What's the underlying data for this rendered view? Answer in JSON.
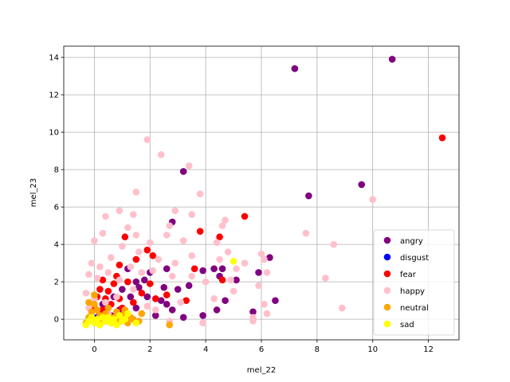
{
  "chart_data": {
    "type": "scatter",
    "title": "",
    "xlabel": "mel_22",
    "ylabel": "mel_23",
    "xlim": [
      -1.1,
      13.1
    ],
    "ylim": [
      -1.1,
      14.6
    ],
    "xticks": [
      0,
      2,
      4,
      6,
      8,
      10,
      12
    ],
    "yticks": [
      0,
      2,
      4,
      6,
      8,
      10,
      12,
      14
    ],
    "grid": true,
    "legend_position": "lower-right",
    "series": [
      {
        "name": "angry",
        "color": "#800080",
        "points": [
          [
            10.7,
            13.9
          ],
          [
            7.2,
            13.4
          ],
          [
            3.2,
            7.9
          ],
          [
            9.6,
            7.2
          ],
          [
            7.7,
            6.6
          ],
          [
            2.8,
            5.2
          ],
          [
            6.3,
            3.3
          ],
          [
            6.5,
            1.0
          ],
          [
            5.9,
            2.5
          ],
          [
            5.1,
            2.1
          ],
          [
            4.6,
            2.7
          ],
          [
            4.3,
            2.7
          ],
          [
            4.5,
            2.3
          ],
          [
            4.7,
            1.0
          ],
          [
            4.4,
            0.5
          ],
          [
            3.9,
            0.2
          ],
          [
            3.9,
            2.6
          ],
          [
            3.4,
            1.8
          ],
          [
            3.0,
            1.6
          ],
          [
            2.6,
            2.7
          ],
          [
            2.5,
            1.7
          ],
          [
            2.6,
            0.8
          ],
          [
            2.8,
            0.5
          ],
          [
            2.4,
            1.0
          ],
          [
            2.0,
            2.5
          ],
          [
            1.8,
            2.1
          ],
          [
            1.6,
            1.7
          ],
          [
            1.5,
            2.0
          ],
          [
            1.5,
            0.6
          ],
          [
            1.2,
            2.7
          ],
          [
            1.0,
            1.6
          ],
          [
            0.9,
            0.5
          ],
          [
            0.7,
            1.2
          ],
          [
            0.6,
            0.2
          ],
          [
            0.3,
            0.8
          ],
          [
            0.2,
            0.3
          ],
          [
            0.1,
            0.0
          ],
          [
            5.7,
            0.4
          ],
          [
            3.2,
            0.1
          ],
          [
            2.2,
            0.2
          ],
          [
            1.9,
            1.2
          ],
          [
            1.3,
            1.2
          ]
        ]
      },
      {
        "name": "disgust",
        "color": "#0000ff",
        "points": [
          [
            0.2,
            -0.2
          ],
          [
            0.4,
            -0.1
          ],
          [
            0.6,
            0.0
          ],
          [
            0.1,
            0.1
          ],
          [
            0.8,
            -0.1
          ],
          [
            1.0,
            0.1
          ]
        ]
      },
      {
        "name": "fear",
        "color": "#ff0000",
        "points": [
          [
            12.5,
            9.7
          ],
          [
            5.4,
            5.5
          ],
          [
            3.8,
            4.7
          ],
          [
            4.5,
            4.4
          ],
          [
            1.1,
            4.4
          ],
          [
            2.1,
            3.4
          ],
          [
            1.5,
            3.2
          ],
          [
            0.9,
            2.9
          ],
          [
            2.0,
            1.9
          ],
          [
            4.6,
            2.1
          ],
          [
            3.6,
            2.7
          ],
          [
            3.3,
            1.0
          ],
          [
            2.6,
            1.3
          ],
          [
            2.2,
            1.1
          ],
          [
            1.7,
            1.4
          ],
          [
            1.4,
            0.9
          ],
          [
            1.2,
            2.0
          ],
          [
            0.8,
            2.3
          ],
          [
            0.7,
            1.9
          ],
          [
            0.5,
            1.5
          ],
          [
            0.4,
            1.1
          ],
          [
            0.3,
            2.1
          ],
          [
            0.2,
            1.6
          ],
          [
            0.1,
            1.2
          ],
          [
            0.6,
            0.8
          ],
          [
            0.9,
            1.1
          ],
          [
            1.0,
            0.6
          ],
          [
            0.0,
            0.6
          ],
          [
            0.3,
            0.5
          ],
          [
            1.9,
            3.7
          ]
        ]
      },
      {
        "name": "happy",
        "color": "#ffc0cb",
        "points": [
          [
            1.9,
            9.6
          ],
          [
            2.4,
            8.8
          ],
          [
            3.4,
            8.2
          ],
          [
            3.8,
            6.7
          ],
          [
            10.0,
            6.4
          ],
          [
            1.5,
            6.8
          ],
          [
            2.9,
            5.8
          ],
          [
            3.5,
            5.6
          ],
          [
            0.9,
            5.8
          ],
          [
            0.4,
            5.5
          ],
          [
            1.4,
            5.6
          ],
          [
            2.7,
            5.0
          ],
          [
            4.6,
            5.0
          ],
          [
            4.7,
            5.3
          ],
          [
            2.6,
            4.5
          ],
          [
            3.2,
            4.2
          ],
          [
            2.0,
            4.1
          ],
          [
            0.0,
            4.2
          ],
          [
            1.2,
            4.9
          ],
          [
            1.5,
            4.5
          ],
          [
            0.3,
            4.6
          ],
          [
            4.4,
            4.1
          ],
          [
            7.6,
            4.6
          ],
          [
            8.6,
            4.0
          ],
          [
            4.8,
            3.6
          ],
          [
            5.4,
            3.0
          ],
          [
            6.0,
            3.5
          ],
          [
            6.1,
            3.2
          ],
          [
            5.1,
            2.7
          ],
          [
            4.5,
            3.2
          ],
          [
            3.5,
            3.4
          ],
          [
            2.9,
            3.0
          ],
          [
            2.3,
            3.2
          ],
          [
            2.1,
            2.6
          ],
          [
            1.6,
            3.6
          ],
          [
            1.0,
            3.9
          ],
          [
            0.6,
            3.3
          ],
          [
            0.2,
            2.8
          ],
          [
            -0.1,
            3.0
          ],
          [
            -0.2,
            2.4
          ],
          [
            0.1,
            2.2
          ],
          [
            0.5,
            2.5
          ],
          [
            0.9,
            2.1
          ],
          [
            1.3,
            2.8
          ],
          [
            1.7,
            2.5
          ],
          [
            2.8,
            2.3
          ],
          [
            3.5,
            2.3
          ],
          [
            4.0,
            2.0
          ],
          [
            4.9,
            2.1
          ],
          [
            5.0,
            1.5
          ],
          [
            5.9,
            1.8
          ],
          [
            6.2,
            2.5
          ],
          [
            8.3,
            2.2
          ],
          [
            8.9,
            0.6
          ],
          [
            6.1,
            0.8
          ],
          [
            5.7,
            0.1
          ],
          [
            3.9,
            -0.2
          ],
          [
            2.7,
            -0.1
          ],
          [
            1.9,
            0.7
          ],
          [
            1.4,
            1.6
          ],
          [
            0.8,
            1.2
          ],
          [
            0.4,
            0.9
          ],
          [
            0.0,
            1.1
          ],
          [
            -0.3,
            1.4
          ],
          [
            -0.2,
            0.6
          ],
          [
            0.5,
            0.3
          ],
          [
            1.1,
            0.4
          ],
          [
            2.2,
            0.5
          ],
          [
            3.1,
            0.9
          ],
          [
            4.3,
            1.1
          ],
          [
            6.2,
            0.3
          ],
          [
            5.7,
            -0.1
          ]
        ]
      },
      {
        "name": "neutral",
        "color": "#ffa500",
        "points": [
          [
            -0.3,
            -0.2
          ],
          [
            -0.2,
            0.1
          ],
          [
            -0.1,
            0.4
          ],
          [
            0.0,
            0.8
          ],
          [
            0.1,
            0.5
          ],
          [
            0.2,
            0.2
          ],
          [
            0.3,
            -0.1
          ],
          [
            0.4,
            0.3
          ],
          [
            0.5,
            0.6
          ],
          [
            0.6,
            -0.2
          ],
          [
            0.7,
            0.1
          ],
          [
            0.8,
            0.4
          ],
          [
            0.9,
            -0.1
          ],
          [
            1.0,
            0.2
          ],
          [
            1.1,
            0.5
          ],
          [
            1.2,
            -0.2
          ],
          [
            1.3,
            0.1
          ],
          [
            1.4,
            0.0
          ],
          [
            1.6,
            -0.1
          ],
          [
            1.7,
            0.3
          ],
          [
            2.7,
            -0.3
          ],
          [
            -0.2,
            0.9
          ],
          [
            0.0,
            1.3
          ],
          [
            0.2,
            -0.3
          ]
        ]
      },
      {
        "name": "sad",
        "color": "#ffff00",
        "points": [
          [
            5.0,
            3.1
          ],
          [
            -0.3,
            -0.3
          ],
          [
            -0.2,
            -0.1
          ],
          [
            -0.1,
            0.1
          ],
          [
            0.0,
            -0.2
          ],
          [
            0.1,
            0.0
          ],
          [
            0.2,
            -0.3
          ],
          [
            0.3,
            0.1
          ],
          [
            0.4,
            -0.1
          ],
          [
            0.5,
            0.1
          ],
          [
            0.6,
            -0.2
          ],
          [
            0.7,
            0.0
          ],
          [
            0.8,
            -0.3
          ],
          [
            1.0,
            -0.1
          ],
          [
            1.2,
            0.3
          ],
          [
            1.1,
            0.0
          ],
          [
            1.5,
            -0.2
          ],
          [
            0.9,
            0.2
          ]
        ]
      }
    ]
  }
}
